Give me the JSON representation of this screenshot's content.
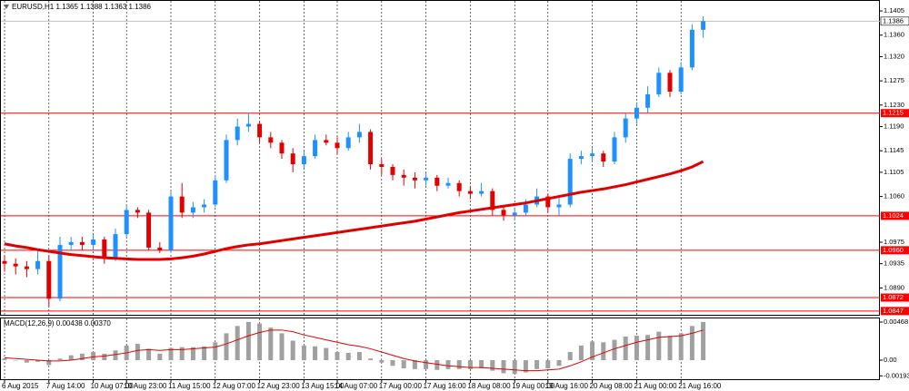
{
  "chart_data": [
    {
      "type": "candlestick",
      "title": "EURUSD,H1  1.1365 1.1388 1.1363 1.1386",
      "categories": [
        "6 Aug 2015",
        null,
        null,
        null,
        "7 Aug 14:00",
        null,
        null,
        null,
        "10 Aug 07:00",
        null,
        null,
        "10 Aug 23:00",
        null,
        null,
        null,
        "11 Aug 15:00",
        null,
        null,
        null,
        "12 Aug 07:00",
        null,
        null,
        null,
        "12 Aug 23:00",
        null,
        null,
        null,
        "13 Aug 15:00",
        null,
        null,
        "14 Aug 07:00",
        null,
        null,
        null,
        "17 Aug 00:00",
        null,
        null,
        null,
        "17 Aug 16:00",
        null,
        null,
        null,
        "18 Aug 08:00",
        null,
        null,
        null,
        "19 Aug 00:00",
        null,
        null,
        "19 Aug 16:00",
        null,
        null,
        null,
        "20 Aug 08:00",
        null,
        null,
        null,
        "21 Aug 00:00",
        null,
        null,
        null,
        "21 Aug 16:00",
        null,
        null
      ],
      "open": [
        1.094,
        1.0935,
        1.093,
        1.0925,
        1.094,
        1.087,
        1.097,
        1.0975,
        1.097,
        1.098,
        1.0945,
        1.099,
        1.1035,
        1.103,
        1.0965,
        1.096,
        1.106,
        1.103,
        1.104,
        1.1045,
        1.109,
        1.1165,
        1.119,
        1.1195,
        1.117,
        1.116,
        1.114,
        1.112,
        1.1135,
        1.1165,
        1.116,
        1.115,
        1.117,
        1.118,
        1.112,
        1.1115,
        1.11,
        1.1095,
        1.109,
        1.1095,
        1.108,
        1.1085,
        1.107,
        1.1065,
        1.107,
        1.1035,
        1.1025,
        1.103,
        1.1045,
        1.106,
        1.104,
        1.1045,
        1.113,
        1.1135,
        1.114,
        1.1125,
        1.117,
        1.1205,
        1.1225,
        1.125,
        1.129,
        1.1255,
        1.13,
        1.137
      ],
      "high": [
        1.095,
        1.0945,
        1.094,
        1.096,
        1.095,
        1.0985,
        1.0985,
        1.0985,
        1.099,
        1.0985,
        1.1,
        1.1045,
        1.104,
        1.1035,
        1.0975,
        1.107,
        1.1085,
        1.105,
        1.1055,
        1.11,
        1.1175,
        1.1205,
        1.1215,
        1.12,
        1.118,
        1.1165,
        1.115,
        1.1145,
        1.1175,
        1.1175,
        1.117,
        1.118,
        1.1195,
        1.1185,
        1.113,
        1.112,
        1.111,
        1.1105,
        1.1105,
        1.11,
        1.1095,
        1.109,
        1.108,
        1.1085,
        1.1075,
        1.104,
        1.104,
        1.1055,
        1.1075,
        1.1065,
        1.106,
        1.114,
        1.1145,
        1.115,
        1.1145,
        1.118,
        1.1215,
        1.1235,
        1.1265,
        1.13,
        1.1295,
        1.131,
        1.138,
        1.1395
      ],
      "low": [
        1.092,
        1.0915,
        1.091,
        1.0915,
        1.0855,
        1.0865,
        1.096,
        1.096,
        1.096,
        1.0935,
        1.094,
        1.0985,
        1.102,
        1.096,
        1.0955,
        1.0955,
        1.102,
        1.102,
        1.103,
        1.104,
        1.1085,
        1.1155,
        1.118,
        1.116,
        1.115,
        1.113,
        1.1105,
        1.111,
        1.113,
        1.1155,
        1.114,
        1.1145,
        1.116,
        1.111,
        1.11,
        1.109,
        1.108,
        1.1075,
        1.108,
        1.107,
        1.1075,
        1.106,
        1.1055,
        1.106,
        1.1025,
        1.1015,
        1.1015,
        1.1025,
        1.104,
        1.103,
        1.1025,
        1.104,
        1.112,
        1.1125,
        1.1115,
        1.112,
        1.116,
        1.1195,
        1.1215,
        1.1245,
        1.1245,
        1.125,
        1.1295,
        1.1355
      ],
      "close": [
        1.0935,
        1.093,
        1.0925,
        1.094,
        1.087,
        1.097,
        1.0975,
        1.097,
        1.098,
        1.0945,
        1.099,
        1.1035,
        1.103,
        1.0965,
        1.096,
        1.106,
        1.103,
        1.104,
        1.1045,
        1.109,
        1.1165,
        1.119,
        1.1195,
        1.117,
        1.116,
        1.114,
        1.112,
        1.1135,
        1.1165,
        1.116,
        1.115,
        1.117,
        1.118,
        1.112,
        1.1115,
        1.11,
        1.1095,
        1.109,
        1.1095,
        1.108,
        1.1085,
        1.107,
        1.1065,
        1.107,
        1.1035,
        1.1025,
        1.103,
        1.1045,
        1.106,
        1.104,
        1.1045,
        1.113,
        1.1135,
        1.114,
        1.1125,
        1.117,
        1.1205,
        1.1225,
        1.125,
        1.129,
        1.1255,
        1.13,
        1.137,
        1.1386
      ],
      "up_color": "#1e90ff",
      "down_color": "#e00000",
      "ma": {
        "color": "#e00000",
        "values": [
          1.0972,
          1.0968,
          1.0965,
          1.0961,
          1.0958,
          1.0955,
          1.0952,
          1.095,
          1.0948,
          1.0946,
          1.0945,
          1.0944,
          1.0943,
          1.0943,
          1.0943,
          1.0944,
          1.0946,
          1.0949,
          1.0953,
          1.0958,
          1.0963,
          1.0967,
          1.097,
          1.0972,
          1.0975,
          1.0978,
          1.0981,
          1.0984,
          1.0987,
          1.099,
          1.0993,
          1.0996,
          1.0999,
          1.1002,
          1.1005,
          1.1008,
          1.1011,
          1.1014,
          1.1018,
          1.1022,
          1.1026,
          1.103,
          1.1033,
          1.1036,
          1.1039,
          1.1042,
          1.1045,
          1.1048,
          1.1052,
          1.1056,
          1.106,
          1.1064,
          1.1068,
          1.1071,
          1.1074,
          1.1078,
          1.1082,
          1.1087,
          1.1092,
          1.1097,
          1.1102,
          1.1108,
          1.1115,
          1.1125
        ]
      },
      "price_line": 1.1386,
      "levels": [
        1.1215,
        1.1024,
        {
          "value": 1.096,
          "label": "1.0960"
        },
        1.0872,
        1.0847
      ],
      "level_color": "#ff0000",
      "ylim": [
        1.084,
        1.1422
      ],
      "yticks": [
        1.1405,
        {
          "value": 1.136,
          "label": "1.1360"
        },
        {
          "value": 1.132,
          "label": "1.1320"
        },
        1.1275,
        {
          "value": 1.123,
          "label": "1.1230"
        },
        {
          "value": 1.119,
          "label": "1.1190"
        },
        1.1145,
        1.1105,
        {
          "value": 1.106,
          "label": "1.1060"
        },
        1.0975,
        1.0935,
        {
          "value": 1.089,
          "label": "1.0890"
        }
      ],
      "grid": true
    },
    {
      "type": "macd",
      "title": "MACD(12,26,9) 0.00438 0.00370",
      "histogram": {
        "color": "#a0a0a0",
        "values": [
          0.0002,
          0,
          -0.0003,
          -0.0002,
          -0.0006,
          0.0002,
          0.0006,
          0.0008,
          0.001,
          0.0008,
          0.0012,
          0.0018,
          0.002,
          0.0014,
          0.0008,
          0.0015,
          0.0016,
          0.0016,
          0.0017,
          0.0022,
          0.0033,
          0.0042,
          0.0047,
          0.0045,
          0.004,
          0.0033,
          0.0024,
          0.0018,
          0.0017,
          0.0015,
          0.001,
          0.0009,
          0.001,
          0.0002,
          -0.0003,
          -0.0007,
          -0.001,
          -0.0011,
          -0.0011,
          -0.0012,
          -0.0011,
          -0.0011,
          -0.0011,
          -0.001,
          -0.0013,
          -0.0016,
          -0.0017,
          -0.0015,
          -0.0011,
          -0.001,
          -0.0007,
          0.001,
          0.0018,
          0.0023,
          0.0022,
          0.0025,
          0.0029,
          0.003,
          0.0031,
          0.0035,
          0.003,
          0.0033,
          0.0042,
          0.0047
        ]
      },
      "signal": {
        "color": "#e00000",
        "values": [
          0.0003,
          0.0002,
          0.0001,
          0,
          -0.0001,
          -0.0001,
          0,
          0.0002,
          0.0004,
          0.0005,
          0.0007,
          0.0009,
          0.0012,
          0.0013,
          0.0012,
          0.0013,
          0.0013,
          0.0014,
          0.0015,
          0.0016,
          0.002,
          0.0025,
          0.003,
          0.0034,
          0.0037,
          0.0037,
          0.0035,
          0.0031,
          0.0028,
          0.0025,
          0.0022,
          0.0019,
          0.0017,
          0.0014,
          0.001,
          0.0006,
          0.0002,
          -0.0001,
          -0.0003,
          -0.0005,
          -0.0007,
          -0.0008,
          -0.0009,
          -0.0009,
          -0.001,
          -0.0011,
          -0.0012,
          -0.0013,
          -0.0013,
          -0.0012,
          -0.0011,
          -0.0007,
          -0.0002,
          0.0004,
          0.0009,
          0.0014,
          0.0018,
          0.0022,
          0.0025,
          0.0028,
          0.0029,
          0.003,
          0.0033,
          0.0037
        ]
      },
      "ylim": [
        -0.00234,
        0.00524
      ],
      "yticks": [
        0.00468,
        {
          "value": 0,
          "label": "0.00"
        },
        -0.00193
      ]
    }
  ]
}
